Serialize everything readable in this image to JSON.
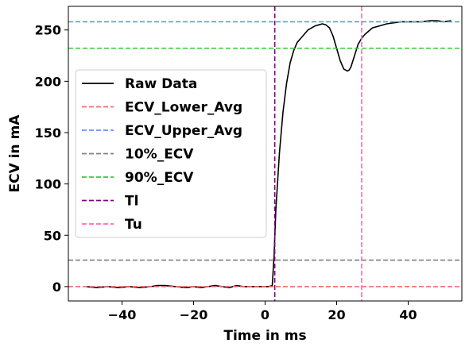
{
  "chart_data": {
    "type": "line",
    "title": "",
    "xlabel": "Time in ms",
    "ylabel": "ECV in mA",
    "xlim": [
      -55,
      55
    ],
    "ylim": [
      -14,
      273
    ],
    "xticks": [
      -40,
      -20,
      0,
      20,
      40
    ],
    "yticks": [
      0,
      50,
      100,
      150,
      200,
      250
    ],
    "xtick_labels": [
      "−40",
      "−20",
      "0",
      "20",
      "40"
    ],
    "ytick_labels": [
      "0",
      "50",
      "100",
      "150",
      "200",
      "250"
    ],
    "grid": false,
    "legend_position": "center-left",
    "series": [
      {
        "name": "Raw Data",
        "color": "#000000",
        "style": "solid",
        "x": [
          -50,
          -47,
          -44,
          -41,
          -38,
          -35,
          -32,
          -30,
          -28,
          -25,
          -22,
          -20,
          -18,
          -16,
          -14,
          -12,
          -10,
          -8,
          -6,
          -4,
          -2,
          0,
          1,
          2,
          2.5,
          3,
          4,
          5,
          6,
          7,
          8,
          9,
          10,
          11,
          12,
          13,
          14,
          15,
          16,
          17,
          18,
          19,
          20,
          21,
          22,
          23,
          23.5,
          24,
          25,
          26,
          27,
          28,
          29,
          30,
          32,
          34,
          36,
          38,
          40,
          42,
          44,
          46,
          48,
          50,
          52
        ],
        "y": [
          0,
          -1,
          0,
          -1,
          0,
          -1,
          0,
          1,
          1,
          0,
          -1,
          0,
          -1,
          0,
          1,
          0,
          -1,
          1,
          0,
          0,
          0,
          0,
          0,
          1,
          30,
          75,
          130,
          170,
          198,
          218,
          230,
          238,
          242,
          246,
          250,
          252,
          254,
          255,
          256,
          255,
          252,
          244,
          232,
          220,
          212,
          210,
          211,
          214,
          225,
          236,
          242,
          246,
          249,
          252,
          254,
          256,
          257,
          258,
          258,
          258,
          258,
          259,
          259,
          258,
          259
        ]
      },
      {
        "name": "ECV_Lower_Avg",
        "color": "#f36b6b",
        "style": "dashed",
        "hline": 0
      },
      {
        "name": "ECV_Upper_Avg",
        "color": "#6495ed",
        "style": "dashed",
        "hline": 258
      },
      {
        "name": "10%_ECV",
        "color": "#808080",
        "style": "dashed",
        "hline": 25.8
      },
      {
        "name": "90%_ECV",
        "color": "#32cd32",
        "style": "dashed",
        "hline": 232.2
      },
      {
        "name": "Tl",
        "color": "#800080",
        "style": "dashed",
        "vline": 2.7
      },
      {
        "name": "Tu",
        "color": "#ff69b4",
        "style": "dashed",
        "vline": 27
      }
    ]
  }
}
